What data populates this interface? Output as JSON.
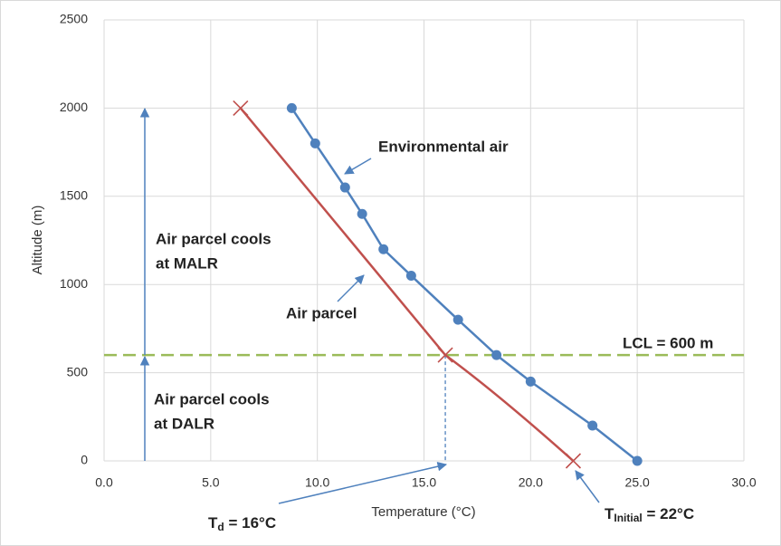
{
  "chart_data": {
    "type": "line",
    "xlabel": "Temperature (°C)",
    "ylabel": "Altitude (m)",
    "xlim": [
      0,
      30
    ],
    "ylim": [
      0,
      2500
    ],
    "xticks": [
      {
        "value": 0,
        "label": "0.0"
      },
      {
        "value": 5,
        "label": "5.0"
      },
      {
        "value": 10,
        "label": "10.0"
      },
      {
        "value": 15,
        "label": "15.0"
      },
      {
        "value": 20,
        "label": "20.0"
      },
      {
        "value": 25,
        "label": "25.0"
      },
      {
        "value": 30,
        "label": "30.0"
      }
    ],
    "yticks": [
      0,
      500,
      1000,
      1500,
      2000,
      2500
    ],
    "grid": true,
    "series": [
      {
        "name": "Environmental air",
        "color": "#4f81bd",
        "marker": "circle",
        "x": [
          8.8,
          9.9,
          11.3,
          12.1,
          13.1,
          14.4,
          16.6,
          18.4,
          20.0,
          22.9,
          25.0
        ],
        "values": [
          2000,
          1800,
          1550,
          1400,
          1200,
          1050,
          800,
          600,
          450,
          200,
          0
        ]
      },
      {
        "name": "Air parcel",
        "color": "#c0504d",
        "marker": "x",
        "x": [
          22.0,
          16.0,
          6.4
        ],
        "values": [
          0,
          600,
          2000
        ]
      }
    ],
    "reference_line": {
      "value": 600,
      "label": "LCL = 600 m",
      "color": "#9bbb59"
    },
    "malr_note": [
      "Air parcel cools",
      "at MALR"
    ],
    "dalr_note": [
      "Air parcel cools",
      "at DALR"
    ],
    "td_label": {
      "main": "T",
      "sub": "d",
      "rest": " = 16°C"
    },
    "tinitial_label": {
      "main": "T",
      "sub": "Initial",
      "rest": " = 22°C"
    }
  }
}
